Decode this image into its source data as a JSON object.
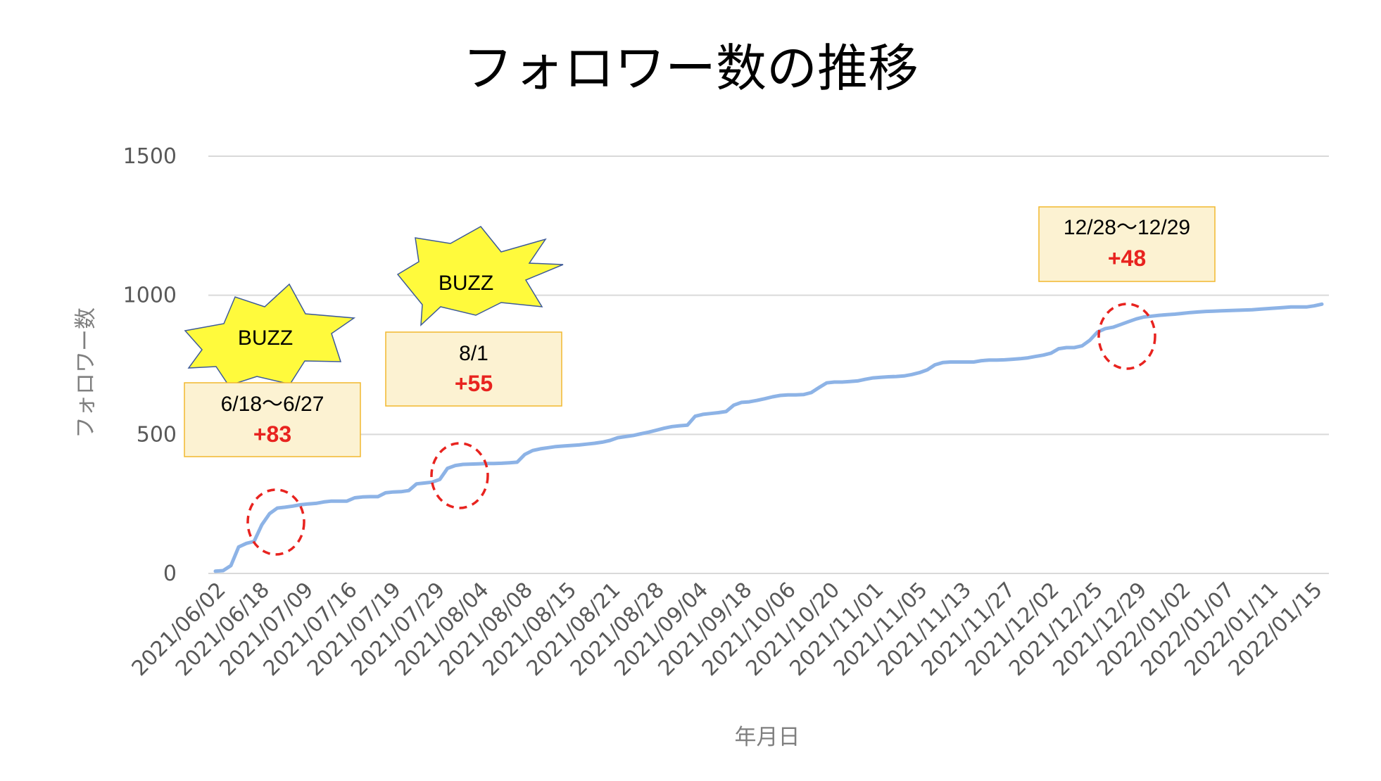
{
  "title": "フォロワー数の推移",
  "chart_data": {
    "type": "line",
    "xlabel": "年月日",
    "ylabel": "フォロワー数",
    "ylim": [
      0,
      1500
    ],
    "yticks": [
      "0",
      "500",
      "1000",
      "1500"
    ],
    "grid": "horizontal",
    "line_color": "#8db3e6",
    "x_tick_labels": [
      "2021/06/02",
      "2021/06/18",
      "2021/07/09",
      "2021/07/16",
      "2021/07/19",
      "2021/07/29",
      "2021/08/04",
      "2021/08/08",
      "2021/08/15",
      "2021/08/21",
      "2021/08/28",
      "2021/09/04",
      "2021/09/18",
      "2021/10/06",
      "2021/10/20",
      "2021/11/01",
      "2021/11/05",
      "2021/11/13",
      "2021/11/27",
      "2021/12/02",
      "2021/12/25",
      "2021/12/29",
      "2022/01/02",
      "2022/01/07",
      "2022/01/11",
      "2022/01/15"
    ],
    "series": [
      {
        "values": [
          8,
          10,
          28,
          95,
          108,
          115,
          175,
          215,
          235,
          238,
          242,
          247,
          250,
          252,
          257,
          260,
          260,
          260,
          272,
          275,
          276,
          276,
          290,
          293,
          294,
          298,
          322,
          325,
          328,
          338,
          378,
          388,
          392,
          393,
          394,
          395,
          395,
          396,
          398,
          400,
          428,
          442,
          448,
          452,
          456,
          458,
          460,
          462,
          465,
          468,
          472,
          478,
          488,
          492,
          496,
          502,
          508,
          515,
          522,
          528,
          531,
          533,
          565,
          572,
          575,
          578,
          582,
          605,
          615,
          617,
          622,
          628,
          635,
          640,
          642,
          642,
          643,
          650,
          668,
          685,
          688,
          688,
          690,
          692,
          698,
          703,
          705,
          707,
          708,
          710,
          715,
          722,
          732,
          750,
          758,
          760,
          760,
          760,
          760,
          765,
          767,
          767,
          768,
          770,
          772,
          775,
          780,
          785,
          792,
          808,
          812,
          812,
          818,
          838,
          868,
          880,
          885,
          895,
          905,
          915,
          922,
          925,
          928,
          930,
          932,
          935,
          938,
          940,
          942,
          943,
          944,
          945,
          946,
          947,
          948,
          950,
          952,
          954,
          956,
          958,
          958,
          958,
          962,
          968
        ]
      }
    ]
  },
  "annotations": [
    {
      "buzz_label": "BUZZ",
      "date_text": "6/18〜6/27",
      "gain_text": "+83",
      "box_fill": "#fcf2d2",
      "box_stroke": "#f2b82e",
      "burst_fill": "#fffa3c",
      "marker_color": "#e8231f"
    },
    {
      "buzz_label": "BUZZ",
      "date_text": "8/1",
      "gain_text": "+55",
      "box_fill": "#fcf2d2",
      "box_stroke": "#f2b82e",
      "burst_fill": "#fffa3c",
      "marker_color": "#e8231f"
    },
    {
      "date_text": "12/28〜12/29",
      "gain_text": "+48",
      "box_fill": "#fcf2d2",
      "box_stroke": "#f2b82e",
      "marker_color": "#e8231f"
    }
  ]
}
